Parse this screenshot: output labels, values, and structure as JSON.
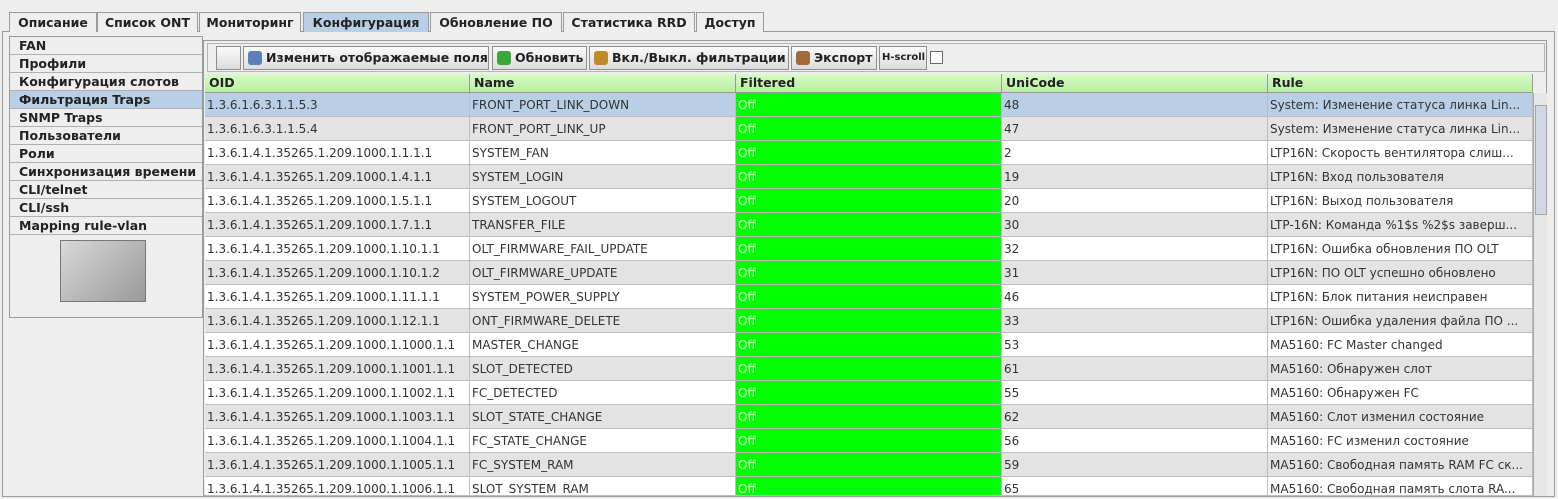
{
  "tabs": [
    "Описание",
    "Список ONT",
    "Мониторинг",
    "Конфигурация",
    "Обновление ПО",
    "Статистика RRD",
    "Доступ"
  ],
  "sidebar": [
    "FAN",
    "Профили",
    "Конфигурация слотов",
    "Фильтрация Traps",
    "SNMP Traps",
    "Пользователи",
    "Роли",
    "Синхронизация времени",
    "CLI/telnet",
    "CLI/ssh",
    "Mapping rule-vlan"
  ],
  "toolbar": {
    "edit_fields": "Изменить отображаемые поля",
    "refresh": "Обновить",
    "filter_toggle": "Вкл./Выкл. фильтрации",
    "export": "Экспорт",
    "hscroll": "H-scroll"
  },
  "table": {
    "columns": [
      "OID",
      "Name",
      "Filtered",
      "UniCode",
      "Rule"
    ],
    "rows": [
      [
        "1.3.6.1.6.3.1.1.5.3",
        "FRONT_PORT_LINK_DOWN",
        "Off",
        48,
        "System: Изменение статуса линка Lin..."
      ],
      [
        "1.3.6.1.6.3.1.1.5.4",
        "FRONT_PORT_LINK_UP",
        "Off",
        47,
        "System: Изменение статуса линка Lin..."
      ],
      [
        "1.3.6.1.4.1.35265.1.209.1000.1.1.1.1",
        "SYSTEM_FAN",
        "Off",
        2,
        "LTP16N: Скорость вентилятора слиш..."
      ],
      [
        "1.3.6.1.4.1.35265.1.209.1000.1.4.1.1",
        "SYSTEM_LOGIN",
        "Off",
        19,
        "LTP16N: Вход пользователя"
      ],
      [
        "1.3.6.1.4.1.35265.1.209.1000.1.5.1.1",
        "SYSTEM_LOGOUT",
        "Off",
        20,
        "LTP16N: Выход пользователя"
      ],
      [
        "1.3.6.1.4.1.35265.1.209.1000.1.7.1.1",
        "TRANSFER_FILE",
        "Off",
        30,
        "LTP-16N: Команда %1$s %2$s заверш..."
      ],
      [
        "1.3.6.1.4.1.35265.1.209.1000.1.10.1.1",
        "OLT_FIRMWARE_FAIL_UPDATE",
        "Off",
        32,
        "LTP16N: Ошибка обновления ПО OLT"
      ],
      [
        "1.3.6.1.4.1.35265.1.209.1000.1.10.1.2",
        "OLT_FIRMWARE_UPDATE",
        "Off",
        31,
        "LTP16N: ПО OLT успешно обновлено"
      ],
      [
        "1.3.6.1.4.1.35265.1.209.1000.1.11.1.1",
        "SYSTEM_POWER_SUPPLY",
        "Off",
        46,
        "LTP16N: Блок питания неисправен"
      ],
      [
        "1.3.6.1.4.1.35265.1.209.1000.1.12.1.1",
        "ONT_FIRMWARE_DELETE",
        "Off",
        33,
        "LTP16N: Ошибка удаления файла ПО ..."
      ],
      [
        "1.3.6.1.4.1.35265.1.209.1000.1.1000.1.1",
        "MASTER_CHANGE",
        "Off",
        53,
        "MA5160: FC Master changed"
      ],
      [
        "1.3.6.1.4.1.35265.1.209.1000.1.1001.1.1",
        "SLOT_DETECTED",
        "Off",
        61,
        "MA5160: Обнаружен слот"
      ],
      [
        "1.3.6.1.4.1.35265.1.209.1000.1.1002.1.1",
        "FC_DETECTED",
        "Off",
        55,
        "MA5160: Обнаружен FC"
      ],
      [
        "1.3.6.1.4.1.35265.1.209.1000.1.1003.1.1",
        "SLOT_STATE_CHANGE",
        "Off",
        62,
        "MA5160: Слот изменил состояние"
      ],
      [
        "1.3.6.1.4.1.35265.1.209.1000.1.1004.1.1",
        "FC_STATE_CHANGE",
        "Off",
        56,
        "MA5160: FC изменил состояние"
      ],
      [
        "1.3.6.1.4.1.35265.1.209.1000.1.1005.1.1",
        "FC_SYSTEM_RAM",
        "Off",
        59,
        "MA5160: Свободная память RAM FC ск..."
      ],
      [
        "1.3.6.1.4.1.35265.1.209.1000.1.1006.1.1",
        "SLOT_SYSTEM_RAM",
        "Off",
        65,
        "MA5160: Свободная память слота RA..."
      ]
    ]
  }
}
